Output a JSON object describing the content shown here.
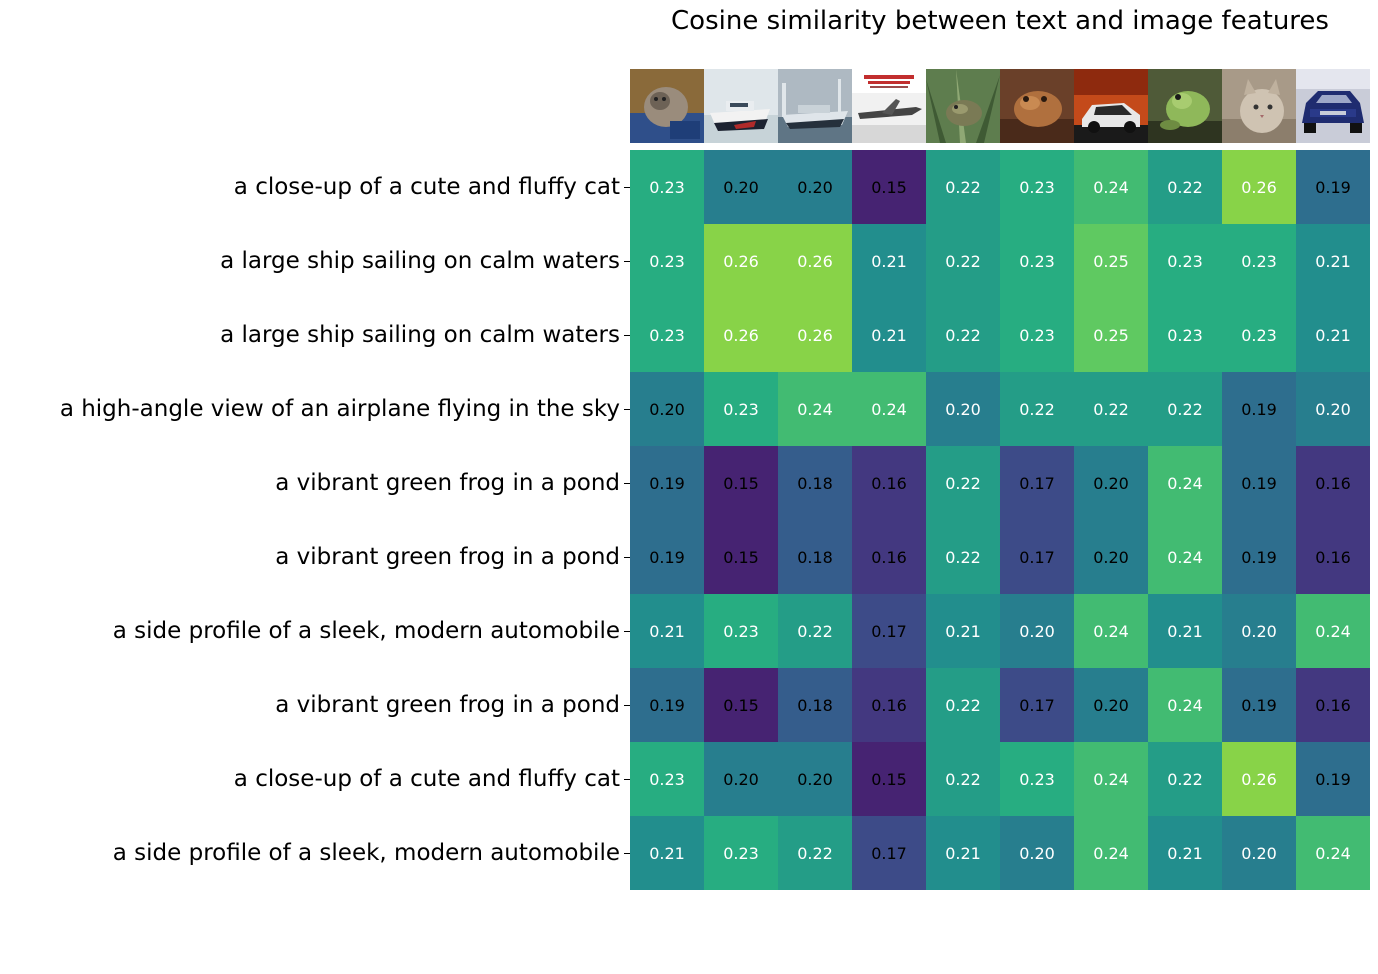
{
  "chart_data": {
    "type": "heatmap",
    "title": "Cosine similarity between text and image features",
    "rows": [
      "a close-up of a cute and fluffy cat",
      "a large ship sailing on calm waters",
      "a large ship sailing on calm waters",
      "a high-angle view of an airplane flying in the sky",
      "a vibrant green frog in a pond",
      "a vibrant green frog in a pond",
      "a side profile of a sleek, modern automobile",
      "a vibrant green frog in a pond",
      "a close-up of a cute and fluffy cat",
      "a side profile of a sleek, modern automobile"
    ],
    "columns": [
      "cat",
      "ship",
      "ship",
      "airplane",
      "frog",
      "frog",
      "automobile",
      "frog",
      "cat",
      "automobile"
    ],
    "values": [
      [
        0.23,
        0.2,
        0.2,
        0.15,
        0.22,
        0.23,
        0.24,
        0.22,
        0.26,
        0.19
      ],
      [
        0.23,
        0.26,
        0.26,
        0.21,
        0.22,
        0.23,
        0.25,
        0.23,
        0.23,
        0.21
      ],
      [
        0.23,
        0.26,
        0.26,
        0.21,
        0.22,
        0.23,
        0.25,
        0.23,
        0.23,
        0.21
      ],
      [
        0.2,
        0.23,
        0.24,
        0.24,
        0.2,
        0.22,
        0.22,
        0.22,
        0.19,
        0.2
      ],
      [
        0.19,
        0.15,
        0.18,
        0.16,
        0.22,
        0.17,
        0.2,
        0.24,
        0.19,
        0.16
      ],
      [
        0.19,
        0.15,
        0.18,
        0.16,
        0.22,
        0.17,
        0.2,
        0.24,
        0.19,
        0.16
      ],
      [
        0.21,
        0.23,
        0.22,
        0.17,
        0.21,
        0.2,
        0.24,
        0.21,
        0.2,
        0.24
      ],
      [
        0.19,
        0.15,
        0.18,
        0.16,
        0.22,
        0.17,
        0.2,
        0.24,
        0.19,
        0.16
      ],
      [
        0.23,
        0.2,
        0.2,
        0.15,
        0.22,
        0.23,
        0.24,
        0.22,
        0.26,
        0.19
      ],
      [
        0.21,
        0.23,
        0.22,
        0.17,
        0.21,
        0.2,
        0.24,
        0.21,
        0.2,
        0.24
      ]
    ],
    "value_range": [
      0.15,
      0.26
    ],
    "colormap": "viridis",
    "grid": false,
    "legend": "none"
  }
}
